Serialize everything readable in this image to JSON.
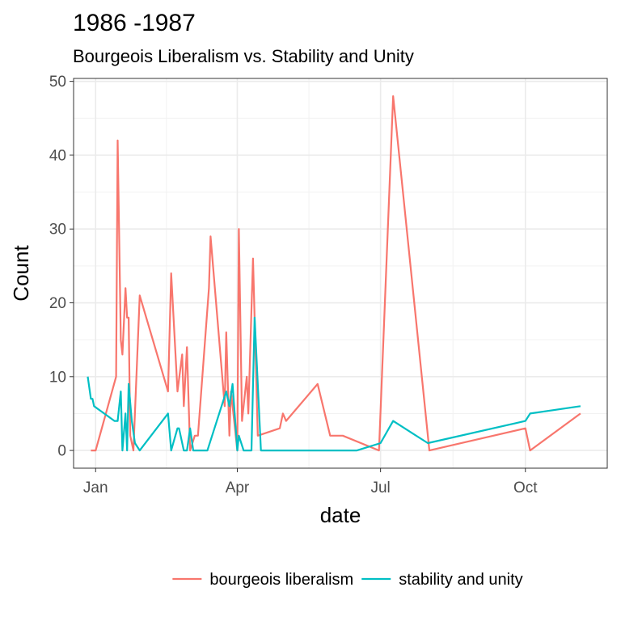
{
  "chart_data": {
    "type": "line",
    "title": "1986 -1987",
    "subtitle": "Bourgeois Liberalism vs. Stability and Unity",
    "xlabel": "date",
    "ylabel": "Count",
    "x_ticks": [
      {
        "label": "Jan",
        "date": "1987-01-01"
      },
      {
        "label": "Apr",
        "date": "1987-04-01"
      },
      {
        "label": "Jul",
        "date": "1987-07-01"
      },
      {
        "label": "Oct",
        "date": "1987-10-01"
      }
    ],
    "xlim": [
      "1986-12-18",
      "1987-11-22"
    ],
    "ylim": [
      -2.4,
      50.4
    ],
    "y_ticks": [
      0,
      10,
      20,
      30,
      40,
      50
    ],
    "grid": true,
    "legend_position": "bottom",
    "series": [
      {
        "name": "bourgeois liberalism",
        "color": "#F8766D",
        "points": [
          [
            "1986-12-29",
            0
          ],
          [
            "1987-01-01",
            0
          ],
          [
            "1987-01-14",
            10
          ],
          [
            "1987-01-15",
            42
          ],
          [
            "1987-01-17",
            15
          ],
          [
            "1987-01-18",
            13
          ],
          [
            "1987-01-20",
            22
          ],
          [
            "1987-01-21",
            18
          ],
          [
            "1987-01-22",
            18
          ],
          [
            "1987-01-23",
            2
          ],
          [
            "1987-01-25",
            0
          ],
          [
            "1987-01-29",
            21
          ],
          [
            "1987-02-16",
            8
          ],
          [
            "1987-02-18",
            24
          ],
          [
            "1987-02-22",
            8
          ],
          [
            "1987-02-25",
            13
          ],
          [
            "1987-02-26",
            6
          ],
          [
            "1987-02-28",
            14
          ],
          [
            "1987-03-02",
            0
          ],
          [
            "1987-03-05",
            2
          ],
          [
            "1987-03-07",
            2
          ],
          [
            "1987-03-14",
            22
          ],
          [
            "1987-03-15",
            29
          ],
          [
            "1987-03-24",
            6
          ],
          [
            "1987-03-25",
            16
          ],
          [
            "1987-03-27",
            2
          ],
          [
            "1987-03-28",
            8
          ],
          [
            "1987-04-01",
            0
          ],
          [
            "1987-04-02",
            30
          ],
          [
            "1987-04-04",
            4
          ],
          [
            "1987-04-07",
            10
          ],
          [
            "1987-04-08",
            5
          ],
          [
            "1987-04-11",
            26
          ],
          [
            "1987-04-14",
            2
          ],
          [
            "1987-04-28",
            3
          ],
          [
            "1987-04-30",
            5
          ],
          [
            "1987-05-02",
            4
          ],
          [
            "1987-05-22",
            9
          ],
          [
            "1987-05-30",
            2
          ],
          [
            "1987-06-07",
            2
          ],
          [
            "1987-06-30",
            0
          ],
          [
            "1987-07-09",
            48
          ],
          [
            "1987-08-01",
            0
          ],
          [
            "1987-10-01",
            3
          ],
          [
            "1987-10-04",
            0
          ],
          [
            "1987-11-05",
            5
          ]
        ]
      },
      {
        "name": "stability and unity",
        "color": "#00BFC4",
        "points": [
          [
            "1986-12-27",
            10
          ],
          [
            "1986-12-29",
            7
          ],
          [
            "1986-12-30",
            7
          ],
          [
            "1986-12-31",
            6
          ],
          [
            "1987-01-13",
            4
          ],
          [
            "1987-01-15",
            4
          ],
          [
            "1987-01-17",
            8
          ],
          [
            "1987-01-18",
            0
          ],
          [
            "1987-01-20",
            5
          ],
          [
            "1987-01-21",
            0
          ],
          [
            "1987-01-22",
            9
          ],
          [
            "1987-01-24",
            4
          ],
          [
            "1987-01-26",
            1
          ],
          [
            "1987-01-29",
            0
          ],
          [
            "1987-02-16",
            5
          ],
          [
            "1987-02-18",
            0
          ],
          [
            "1987-02-22",
            3
          ],
          [
            "1987-02-23",
            3
          ],
          [
            "1987-02-26",
            0
          ],
          [
            "1987-02-28",
            0
          ],
          [
            "1987-03-02",
            3
          ],
          [
            "1987-03-04",
            0
          ],
          [
            "1987-03-13",
            0
          ],
          [
            "1987-03-25",
            8
          ],
          [
            "1987-03-27",
            6
          ],
          [
            "1987-03-29",
            9
          ],
          [
            "1987-04-01",
            0
          ],
          [
            "1987-04-02",
            2
          ],
          [
            "1987-04-05",
            0
          ],
          [
            "1987-04-10",
            0
          ],
          [
            "1987-04-12",
            18
          ],
          [
            "1987-04-16",
            0
          ],
          [
            "1987-06-16",
            0
          ],
          [
            "1987-07-01",
            1
          ],
          [
            "1987-07-09",
            4
          ],
          [
            "1987-07-31",
            1
          ],
          [
            "1987-10-01",
            4
          ],
          [
            "1987-10-04",
            5
          ],
          [
            "1987-11-05",
            6
          ]
        ]
      }
    ]
  }
}
